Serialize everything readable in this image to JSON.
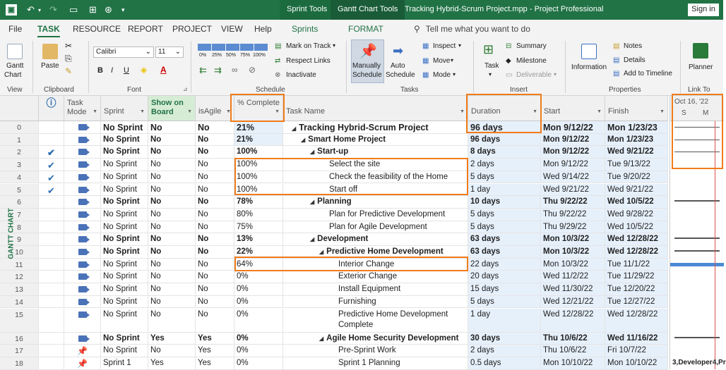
{
  "titlebar": {
    "ctx_sprint": "Sprint Tools",
    "ctx_gantt": "Gantt Chart Tools",
    "doc_title": "Tracking Hybrid-Scrum Project.mpp  -  Project Professional",
    "signin": "Sign in"
  },
  "tabs": [
    "File",
    "TASK",
    "RESOURCE",
    "REPORT",
    "PROJECT",
    "VIEW",
    "Help",
    "Sprints",
    "FORMAT"
  ],
  "tellme": "Tell me what you want to do",
  "ribbon": {
    "view": {
      "gantt": "Gantt",
      "chart": "Chart",
      "label": "View"
    },
    "clipboard": {
      "paste": "Paste",
      "label": "Clipboard"
    },
    "font": {
      "name": "Calibri",
      "size": "11",
      "bold": "B",
      "italic": "I",
      "underline": "U",
      "label": "Font"
    },
    "schedule": {
      "pct": [
        "0%",
        "25%",
        "50%",
        "75%",
        "100%"
      ],
      "mark_on_track": "Mark on Track",
      "respect_links": "Respect Links",
      "inactivate": "Inactivate",
      "label": "Schedule"
    },
    "tasks": {
      "manual": "Manually",
      "manual2": "Schedule",
      "auto": "Auto",
      "auto2": "Schedule",
      "inspect": "Inspect",
      "move": "Move",
      "mode": "Mode",
      "label": "Tasks"
    },
    "insert": {
      "task": "Task",
      "summary": "Summary",
      "milestone": "Milestone",
      "deliverable": "Deliverable",
      "label": "Insert"
    },
    "properties": {
      "information": "Information",
      "notes": "Notes",
      "details": "Details",
      "add_timeline": "Add to Timeline",
      "label": "Properties"
    },
    "linkto": {
      "planner": "Planner",
      "label": "Link To"
    }
  },
  "side_label": "GANTT CHART",
  "columns": {
    "info": "ⓘ",
    "task_mode": "Task Mode",
    "sprint": "Sprint",
    "show_on_board": "Show on Board",
    "is_agile": "isAgile",
    "pct": "% Complete",
    "task_name": "Task Name",
    "duration": "Duration",
    "start": "Start",
    "finish": "Finish"
  },
  "timescale": {
    "week": "Oct 16, '22",
    "d1": "S",
    "d2": "M"
  },
  "gantt_footer": "3,Developer4,Pr",
  "rows": [
    {
      "id": "0",
      "check": "",
      "mode": "auto",
      "sprint": "No Sprint",
      "board": "No",
      "agile": "No",
      "pct": "21%",
      "name": "Tracking Hybrid-Scrum Project",
      "indent": 0,
      "summary": true,
      "duration": "96 days",
      "start": "Mon 9/12/22",
      "finish": "Mon 1/23/23",
      "big": true
    },
    {
      "id": "1",
      "check": "",
      "mode": "auto",
      "sprint": "No Sprint",
      "board": "No",
      "agile": "No",
      "pct": "21%",
      "name": "Smart Home Project",
      "indent": 1,
      "summary": true,
      "duration": "96 days",
      "start": "Mon 9/12/22",
      "finish": "Mon 1/23/23"
    },
    {
      "id": "2",
      "check": "✔",
      "mode": "auto",
      "sprint": "No Sprint",
      "board": "No",
      "agile": "No",
      "pct": "100%",
      "name": "Start-up",
      "indent": 2,
      "summary": true,
      "duration": "8 days",
      "start": "Mon 9/12/22",
      "finish": "Wed 9/21/22"
    },
    {
      "id": "3",
      "check": "✔",
      "mode": "auto",
      "sprint": "No Sprint",
      "board": "No",
      "agile": "No",
      "pct": "100%",
      "name": "Select the site",
      "indent": 3,
      "summary": false,
      "duration": "2 days",
      "start": "Mon 9/12/22",
      "finish": "Tue 9/13/22"
    },
    {
      "id": "4",
      "check": "✔",
      "mode": "auto",
      "sprint": "No Sprint",
      "board": "No",
      "agile": "No",
      "pct": "100%",
      "name": "Check the feasibility of the Home",
      "indent": 3,
      "summary": false,
      "duration": "5 days",
      "start": "Wed 9/14/22",
      "finish": "Tue 9/20/22"
    },
    {
      "id": "5",
      "check": "✔",
      "mode": "auto",
      "sprint": "No Sprint",
      "board": "No",
      "agile": "No",
      "pct": "100%",
      "name": "Start off",
      "indent": 3,
      "summary": false,
      "duration": "1 day",
      "start": "Wed 9/21/22",
      "finish": "Wed 9/21/22"
    },
    {
      "id": "6",
      "check": "",
      "mode": "auto",
      "sprint": "No Sprint",
      "board": "No",
      "agile": "No",
      "pct": "78%",
      "name": "Planning",
      "indent": 2,
      "summary": true,
      "duration": "10 days",
      "start": "Thu 9/22/22",
      "finish": "Wed 10/5/22"
    },
    {
      "id": "7",
      "check": "",
      "mode": "auto",
      "sprint": "No Sprint",
      "board": "No",
      "agile": "No",
      "pct": "80%",
      "name": "Plan for Predictive Development",
      "indent": 3,
      "summary": false,
      "duration": "5 days",
      "start": "Thu 9/22/22",
      "finish": "Wed 9/28/22"
    },
    {
      "id": "8",
      "check": "",
      "mode": "auto",
      "sprint": "No Sprint",
      "board": "No",
      "agile": "No",
      "pct": "75%",
      "name": "Plan for Agile Development",
      "indent": 3,
      "summary": false,
      "duration": "5 days",
      "start": "Thu 9/29/22",
      "finish": "Wed 10/5/22"
    },
    {
      "id": "9",
      "check": "",
      "mode": "auto",
      "sprint": "No Sprint",
      "board": "No",
      "agile": "No",
      "pct": "13%",
      "name": "Development",
      "indent": 2,
      "summary": true,
      "duration": "63 days",
      "start": "Mon 10/3/22",
      "finish": "Wed 12/28/22"
    },
    {
      "id": "10",
      "check": "",
      "mode": "auto",
      "sprint": "No Sprint",
      "board": "No",
      "agile": "No",
      "pct": "22%",
      "name": "Predictive Home Development",
      "indent": 3,
      "summary": true,
      "duration": "63 days",
      "start": "Mon 10/3/22",
      "finish": "Wed 12/28/22"
    },
    {
      "id": "11",
      "check": "",
      "mode": "auto",
      "sprint": "No Sprint",
      "board": "No",
      "agile": "No",
      "pct": "64%",
      "name": "Interior Change",
      "indent": 4,
      "summary": false,
      "duration": "22 days",
      "start": "Mon 10/3/22",
      "finish": "Tue 11/1/22"
    },
    {
      "id": "12",
      "check": "",
      "mode": "auto",
      "sprint": "No Sprint",
      "board": "No",
      "agile": "No",
      "pct": "0%",
      "name": "Exterior Change",
      "indent": 4,
      "summary": false,
      "duration": "20 days",
      "start": "Wed 11/2/22",
      "finish": "Tue 11/29/22"
    },
    {
      "id": "13",
      "check": "",
      "mode": "auto",
      "sprint": "No Sprint",
      "board": "No",
      "agile": "No",
      "pct": "0%",
      "name": "Install Equipment",
      "indent": 4,
      "summary": false,
      "duration": "15 days",
      "start": "Wed 11/30/22",
      "finish": "Tue 12/20/22"
    },
    {
      "id": "14",
      "check": "",
      "mode": "auto",
      "sprint": "No Sprint",
      "board": "No",
      "agile": "No",
      "pct": "0%",
      "name": "Furnishing",
      "indent": 4,
      "summary": false,
      "duration": "5 days",
      "start": "Wed 12/21/22",
      "finish": "Tue 12/27/22"
    },
    {
      "id": "15",
      "check": "",
      "mode": "auto",
      "sprint": "No Sprint",
      "board": "No",
      "agile": "No",
      "pct": "0%",
      "name": "Predictive Home Development",
      "name2": "Complete",
      "indent": 4,
      "summary": false,
      "duration": "1 day",
      "start": "Wed 12/28/22",
      "finish": "Wed 12/28/22",
      "tall": true
    },
    {
      "id": "16",
      "check": "",
      "mode": "auto",
      "sprint": "No Sprint",
      "board": "Yes",
      "agile": "Yes",
      "pct": "0%",
      "name": "Agile Home Security Development",
      "indent": 3,
      "summary": true,
      "duration": "30 days",
      "start": "Thu 10/6/22",
      "finish": "Wed 11/16/22"
    },
    {
      "id": "17",
      "check": "",
      "mode": "manual",
      "sprint": "No Sprint",
      "board": "No",
      "agile": "Yes",
      "pct": "0%",
      "name": "Pre-Sprint Work",
      "indent": 4,
      "summary": false,
      "duration": "2 days",
      "start": "Thu 10/6/22",
      "finish": "Fri 10/7/22"
    },
    {
      "id": "18",
      "check": "",
      "mode": "manual",
      "sprint": "Sprint 1",
      "board": "Yes",
      "agile": "Yes",
      "pct": "0%",
      "name": "Sprint 1 Planning",
      "indent": 4,
      "summary": false,
      "duration": "0.5 days",
      "start": "Mon 10/10/22",
      "finish": "Mon 10/10/22"
    }
  ],
  "colors": {
    "accent": "#217346",
    "highlight": "#f07c1c",
    "selection": "#e6f0fb"
  }
}
